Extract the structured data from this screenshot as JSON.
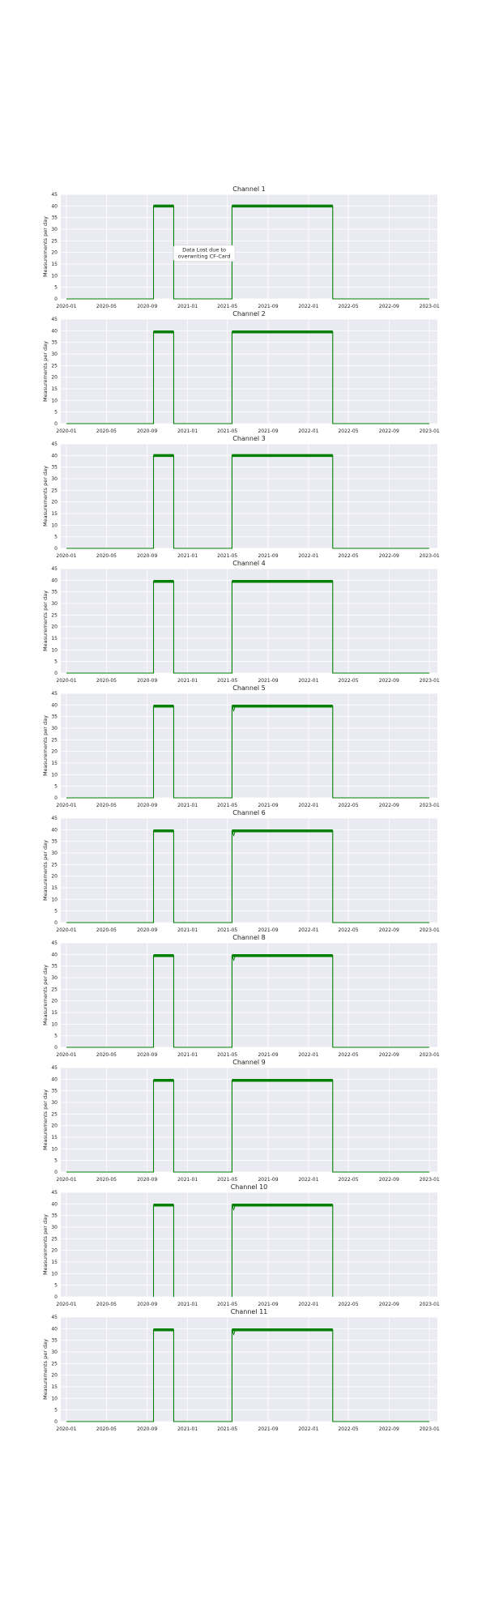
{
  "figure": {
    "background": "#ffffff",
    "plot_background": "#eaeaf2",
    "grid_color": "#ffffff",
    "line_color": "#008000"
  },
  "chart_data": [
    {
      "type": "line",
      "title": "Channel 1",
      "ylabel": "Measurements per day",
      "xlabel": "",
      "ylim": [
        0,
        45
      ],
      "yticks": [
        0,
        5,
        10,
        15,
        20,
        25,
        30,
        35,
        40,
        45
      ],
      "xlim": [
        "2019-12-15",
        "2023-01-25"
      ],
      "xticks": [
        "2020-01",
        "2020-05",
        "2020-09",
        "2021-01",
        "2021-05",
        "2021-09",
        "2022-01",
        "2022-05",
        "2022-09",
        "2023-01"
      ],
      "grid": true,
      "dips": [],
      "annotation": {
        "lines": [
          "Data Lost due to",
          "overwriting CF-Card"
        ],
        "x": "2021-02-20",
        "y": 20
      },
      "series": [
        {
          "x": [
            "2020-01-01",
            "2020-09-20",
            "2020-09-20",
            "2020-11-20",
            "2020-11-20",
            "2021-05-15",
            "2021-05-15",
            "2022-03-15",
            "2022-03-15",
            "2023-01-01"
          ],
          "y": [
            0,
            0,
            40,
            40,
            0,
            0,
            40,
            40,
            0,
            0
          ]
        }
      ]
    },
    {
      "type": "line",
      "title": "Channel 2",
      "ylabel": "Measurements per day",
      "xlabel": "",
      "ylim": [
        0,
        45
      ],
      "yticks": [
        0,
        5,
        10,
        15,
        20,
        25,
        30,
        35,
        40,
        45
      ],
      "xlim": [
        "2019-12-15",
        "2023-01-25"
      ],
      "xticks": [
        "2020-01",
        "2020-05",
        "2020-09",
        "2021-01",
        "2021-05",
        "2021-09",
        "2022-01",
        "2022-05",
        "2022-09",
        "2023-01"
      ],
      "grid": true,
      "dips": [],
      "series": [
        {
          "x": [
            "2020-01-01",
            "2020-09-20",
            "2020-09-20",
            "2020-11-20",
            "2020-11-20",
            "2021-05-15",
            "2021-05-15",
            "2022-03-15",
            "2022-03-15",
            "2023-01-01"
          ],
          "y": [
            0,
            0,
            39.5,
            39.5,
            0,
            0,
            39.5,
            39.5,
            0,
            0
          ]
        }
      ]
    },
    {
      "type": "line",
      "title": "Channel 3",
      "ylabel": "Measurements per day",
      "xlabel": "",
      "ylim": [
        0,
        45
      ],
      "yticks": [
        0,
        5,
        10,
        15,
        20,
        25,
        30,
        35,
        40,
        45
      ],
      "xlim": [
        "2019-12-15",
        "2023-01-25"
      ],
      "xticks": [
        "2020-01",
        "2020-05",
        "2020-09",
        "2021-01",
        "2021-05",
        "2021-09",
        "2022-01",
        "2022-05",
        "2022-09",
        "2023-01"
      ],
      "grid": true,
      "dips": [],
      "series": [
        {
          "x": [
            "2020-01-01",
            "2020-09-20",
            "2020-09-20",
            "2020-11-20",
            "2020-11-20",
            "2021-05-15",
            "2021-05-15",
            "2022-03-15",
            "2022-03-15",
            "2023-01-01"
          ],
          "y": [
            0,
            0,
            40,
            40,
            0,
            0,
            40,
            40,
            0,
            0
          ]
        }
      ]
    },
    {
      "type": "line",
      "title": "Channel 4",
      "ylabel": "Measurements per day",
      "xlabel": "",
      "ylim": [
        0,
        45
      ],
      "yticks": [
        0,
        5,
        10,
        15,
        20,
        25,
        30,
        35,
        40,
        45
      ],
      "xlim": [
        "2019-12-15",
        "2023-01-25"
      ],
      "xticks": [
        "2020-01",
        "2020-05",
        "2020-09",
        "2021-01",
        "2021-05",
        "2021-09",
        "2022-01",
        "2022-05",
        "2022-09",
        "2023-01"
      ],
      "grid": true,
      "dips": [],
      "series": [
        {
          "x": [
            "2020-01-01",
            "2020-09-20",
            "2020-09-20",
            "2020-11-20",
            "2020-11-20",
            "2021-05-15",
            "2021-05-15",
            "2022-03-15",
            "2022-03-15",
            "2023-01-01"
          ],
          "y": [
            0,
            0,
            39.5,
            39.5,
            0,
            0,
            39.5,
            39.5,
            0,
            0
          ]
        }
      ]
    },
    {
      "type": "line",
      "title": "Channel 5",
      "ylabel": "Measurements per day",
      "xlabel": "",
      "ylim": [
        0,
        45
      ],
      "yticks": [
        0,
        5,
        10,
        15,
        20,
        25,
        30,
        35,
        40,
        45
      ],
      "xlim": [
        "2019-12-15",
        "2023-01-25"
      ],
      "xticks": [
        "2020-01",
        "2020-05",
        "2020-09",
        "2021-01",
        "2021-05",
        "2021-09",
        "2022-01",
        "2022-05",
        "2022-09",
        "2023-01"
      ],
      "grid": true,
      "dips": [
        {
          "x": "2021-05-20",
          "y": 37.5
        }
      ],
      "series": [
        {
          "x": [
            "2020-01-01",
            "2020-09-20",
            "2020-09-20",
            "2020-11-20",
            "2020-11-20",
            "2021-05-15",
            "2021-05-15",
            "2022-03-15",
            "2022-03-15",
            "2023-01-01"
          ],
          "y": [
            0,
            0,
            39.5,
            39.5,
            0,
            0,
            39.5,
            39.5,
            0,
            0
          ]
        }
      ]
    },
    {
      "type": "line",
      "title": "Channel 6",
      "ylabel": "Measurements per day",
      "xlabel": "",
      "ylim": [
        0,
        45
      ],
      "yticks": [
        0,
        5,
        10,
        15,
        20,
        25,
        30,
        35,
        40,
        45
      ],
      "xlim": [
        "2019-12-15",
        "2023-01-25"
      ],
      "xticks": [
        "2020-01",
        "2020-05",
        "2020-09",
        "2021-01",
        "2021-05",
        "2021-09",
        "2022-01",
        "2022-05",
        "2022-09",
        "2023-01"
      ],
      "grid": true,
      "dips": [
        {
          "x": "2021-05-20",
          "y": 37.5
        }
      ],
      "series": [
        {
          "x": [
            "2020-01-01",
            "2020-09-20",
            "2020-09-20",
            "2020-11-20",
            "2020-11-20",
            "2021-05-15",
            "2021-05-15",
            "2022-03-15",
            "2022-03-15",
            "2023-01-01"
          ],
          "y": [
            0,
            0,
            39.5,
            39.5,
            0,
            0,
            39.5,
            39.5,
            0,
            0
          ]
        }
      ]
    },
    {
      "type": "line",
      "title": "Channel 8",
      "ylabel": "Measurements per day",
      "xlabel": "",
      "ylim": [
        0,
        45
      ],
      "yticks": [
        0,
        5,
        10,
        15,
        20,
        25,
        30,
        35,
        40,
        45
      ],
      "xlim": [
        "2019-12-15",
        "2023-01-25"
      ],
      "xticks": [
        "2020-01",
        "2020-05",
        "2020-09",
        "2021-01",
        "2021-05",
        "2021-09",
        "2022-01",
        "2022-05",
        "2022-09",
        "2023-01"
      ],
      "grid": true,
      "dips": [
        {
          "x": "2021-05-20",
          "y": 37.5
        }
      ],
      "series": [
        {
          "x": [
            "2020-01-01",
            "2020-09-20",
            "2020-09-20",
            "2020-11-20",
            "2020-11-20",
            "2021-05-15",
            "2021-05-15",
            "2022-03-15",
            "2022-03-15",
            "2023-01-01"
          ],
          "y": [
            0,
            0,
            39.5,
            39.5,
            0,
            0,
            39.5,
            39.5,
            0,
            0
          ]
        }
      ]
    },
    {
      "type": "line",
      "title": "Channel 9",
      "ylabel": "Measurements per day",
      "xlabel": "",
      "ylim": [
        0,
        45
      ],
      "yticks": [
        0,
        5,
        10,
        15,
        20,
        25,
        30,
        35,
        40,
        45
      ],
      "xlim": [
        "2019-12-15",
        "2023-01-25"
      ],
      "xticks": [
        "2020-01",
        "2020-05",
        "2020-09",
        "2021-01",
        "2021-05",
        "2021-09",
        "2022-01",
        "2022-05",
        "2022-09",
        "2023-01"
      ],
      "grid": true,
      "dips": [],
      "series": [
        {
          "x": [
            "2020-01-01",
            "2020-09-20",
            "2020-09-20",
            "2020-11-20",
            "2020-11-20",
            "2021-05-15",
            "2021-05-15",
            "2022-03-15",
            "2022-03-15",
            "2023-01-01"
          ],
          "y": [
            0,
            0,
            39.5,
            39.5,
            0,
            0,
            39.5,
            39.5,
            0,
            0
          ]
        }
      ]
    },
    {
      "type": "line",
      "title": "Channel 10",
      "ylabel": "Measurements per day",
      "xlabel": "",
      "ylim": [
        0,
        45
      ],
      "yticks": [
        0,
        5,
        10,
        15,
        20,
        25,
        30,
        35,
        40,
        45
      ],
      "xlim": [
        "2019-12-15",
        "2023-01-25"
      ],
      "xticks": [
        "2020-01",
        "2020-05",
        "2020-09",
        "2021-01",
        "2021-05",
        "2021-09",
        "2022-01",
        "2022-05",
        "2022-09",
        "2023-01"
      ],
      "grid": true,
      "dips": [
        {
          "x": "2021-05-20",
          "y": 37.5
        }
      ],
      "series": [
        {
          "x": [
            "2020-09-20",
            "2020-09-20",
            "2020-11-20",
            "2020-11-20"
          ],
          "y": [
            0,
            39.5,
            39.5,
            0
          ]
        },
        {
          "x": [
            "2021-05-15",
            "2021-05-15",
            "2022-03-15",
            "2022-03-15"
          ],
          "y": [
            0,
            39.5,
            39.5,
            0
          ]
        }
      ]
    },
    {
      "type": "line",
      "title": "Channel 11",
      "ylabel": "Measurements per day",
      "xlabel": "",
      "ylim": [
        0,
        45
      ],
      "yticks": [
        0,
        5,
        10,
        15,
        20,
        25,
        30,
        35,
        40,
        45
      ],
      "xlim": [
        "2019-12-15",
        "2023-01-25"
      ],
      "xticks": [
        "2020-01",
        "2020-05",
        "2020-09",
        "2021-01",
        "2021-05",
        "2021-09",
        "2022-01",
        "2022-05",
        "2022-09",
        "2023-01"
      ],
      "grid": true,
      "dips": [
        {
          "x": "2021-05-20",
          "y": 37.5
        }
      ],
      "series": [
        {
          "x": [
            "2020-01-01",
            "2020-09-20",
            "2020-09-20",
            "2020-11-20",
            "2020-11-20",
            "2021-05-15",
            "2021-05-15",
            "2022-03-15",
            "2022-03-15",
            "2023-01-01"
          ],
          "y": [
            0,
            0,
            39.5,
            39.5,
            0,
            0,
            39.5,
            39.5,
            0,
            0
          ]
        }
      ]
    }
  ]
}
